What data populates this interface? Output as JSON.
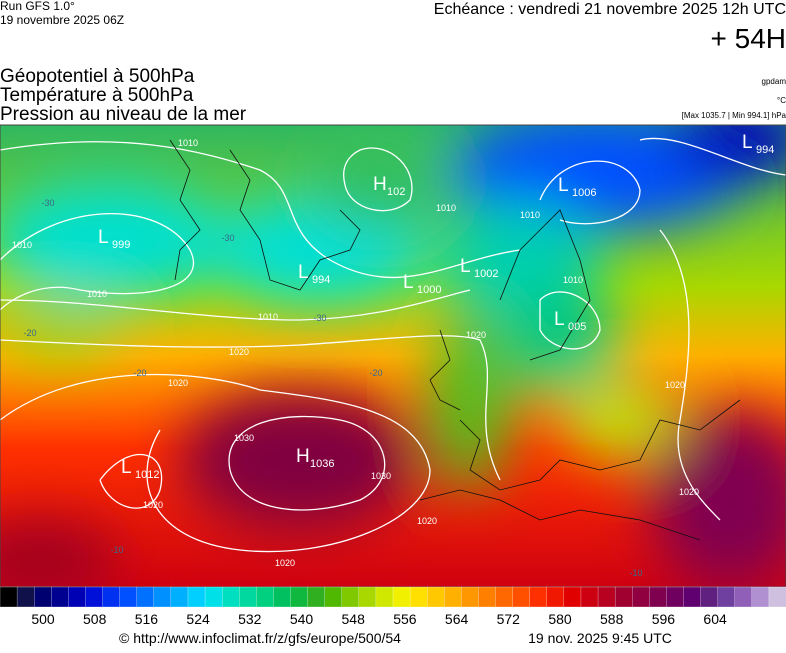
{
  "header": {
    "run": "Run GFS 1.0°",
    "run_date": "19 novembre 2025 06Z",
    "echeance": "Echéance : vendredi 21 novembre 2025 12h UTC",
    "lead": "+ 54H",
    "fields": [
      "Géopotentiel à 500hPa",
      "Température à 500hPa",
      "Pression au niveau de la mer"
    ],
    "unit_geo": "gpdam",
    "unit_temp": "°C",
    "range": "[Max 1035.7 | Min 994.1] hPa"
  },
  "centers": [
    {
      "type": "L",
      "value": "999"
    },
    {
      "type": "L",
      "value": "994"
    },
    {
      "type": "H",
      "value": "102"
    },
    {
      "type": "L",
      "value": "1006"
    },
    {
      "type": "L",
      "value": "994"
    },
    {
      "type": "L",
      "value": "1000"
    },
    {
      "type": "L",
      "value": "1002"
    },
    {
      "type": "L",
      "value": "005"
    },
    {
      "type": "H",
      "value": "1036"
    },
    {
      "type": "L",
      "value": "1012"
    }
  ],
  "isobar_labels": [
    "1010",
    "1010",
    "1010",
    "1010",
    "1010",
    "1010",
    "1010",
    "1020",
    "1020",
    "1020",
    "1030",
    "1030",
    "1020",
    "1020",
    "1020",
    "1020",
    "1020"
  ],
  "temp_labels": [
    "-30",
    "-30",
    "-30",
    "-20",
    "-20",
    "-20",
    "-10",
    "-10"
  ],
  "colorbar": {
    "labels": [
      500,
      508,
      516,
      524,
      532,
      540,
      548,
      556,
      564,
      572,
      580,
      588,
      596,
      604
    ],
    "colors": [
      "#000000",
      "#10104a",
      "#000070",
      "#000090",
      "#0000b4",
      "#0010d8",
      "#0030f0",
      "#0050ff",
      "#0070ff",
      "#0090ff",
      "#00b0ff",
      "#00cfff",
      "#00e0e8",
      "#00e0c0",
      "#00d8a0",
      "#00d080",
      "#00c060",
      "#10b840",
      "#30b020",
      "#50b800",
      "#80c800",
      "#a8d800",
      "#d0e800",
      "#f0f000",
      "#ffe000",
      "#ffc800",
      "#ffb000",
      "#ff9800",
      "#ff8000",
      "#ff6800",
      "#ff5000",
      "#ff3000",
      "#f01800",
      "#e00000",
      "#cc0010",
      "#b80020",
      "#a00030",
      "#900040",
      "#800050",
      "#700060",
      "#600070",
      "#602080",
      "#7040a0",
      "#9060b8",
      "#b090d0",
      "#d0c0e0"
    ]
  },
  "footer": {
    "url": "© http://www.infoclimat.fr/z/gfs/europe/500/54",
    "time": "19 nov. 2025  9:45 UTC"
  }
}
